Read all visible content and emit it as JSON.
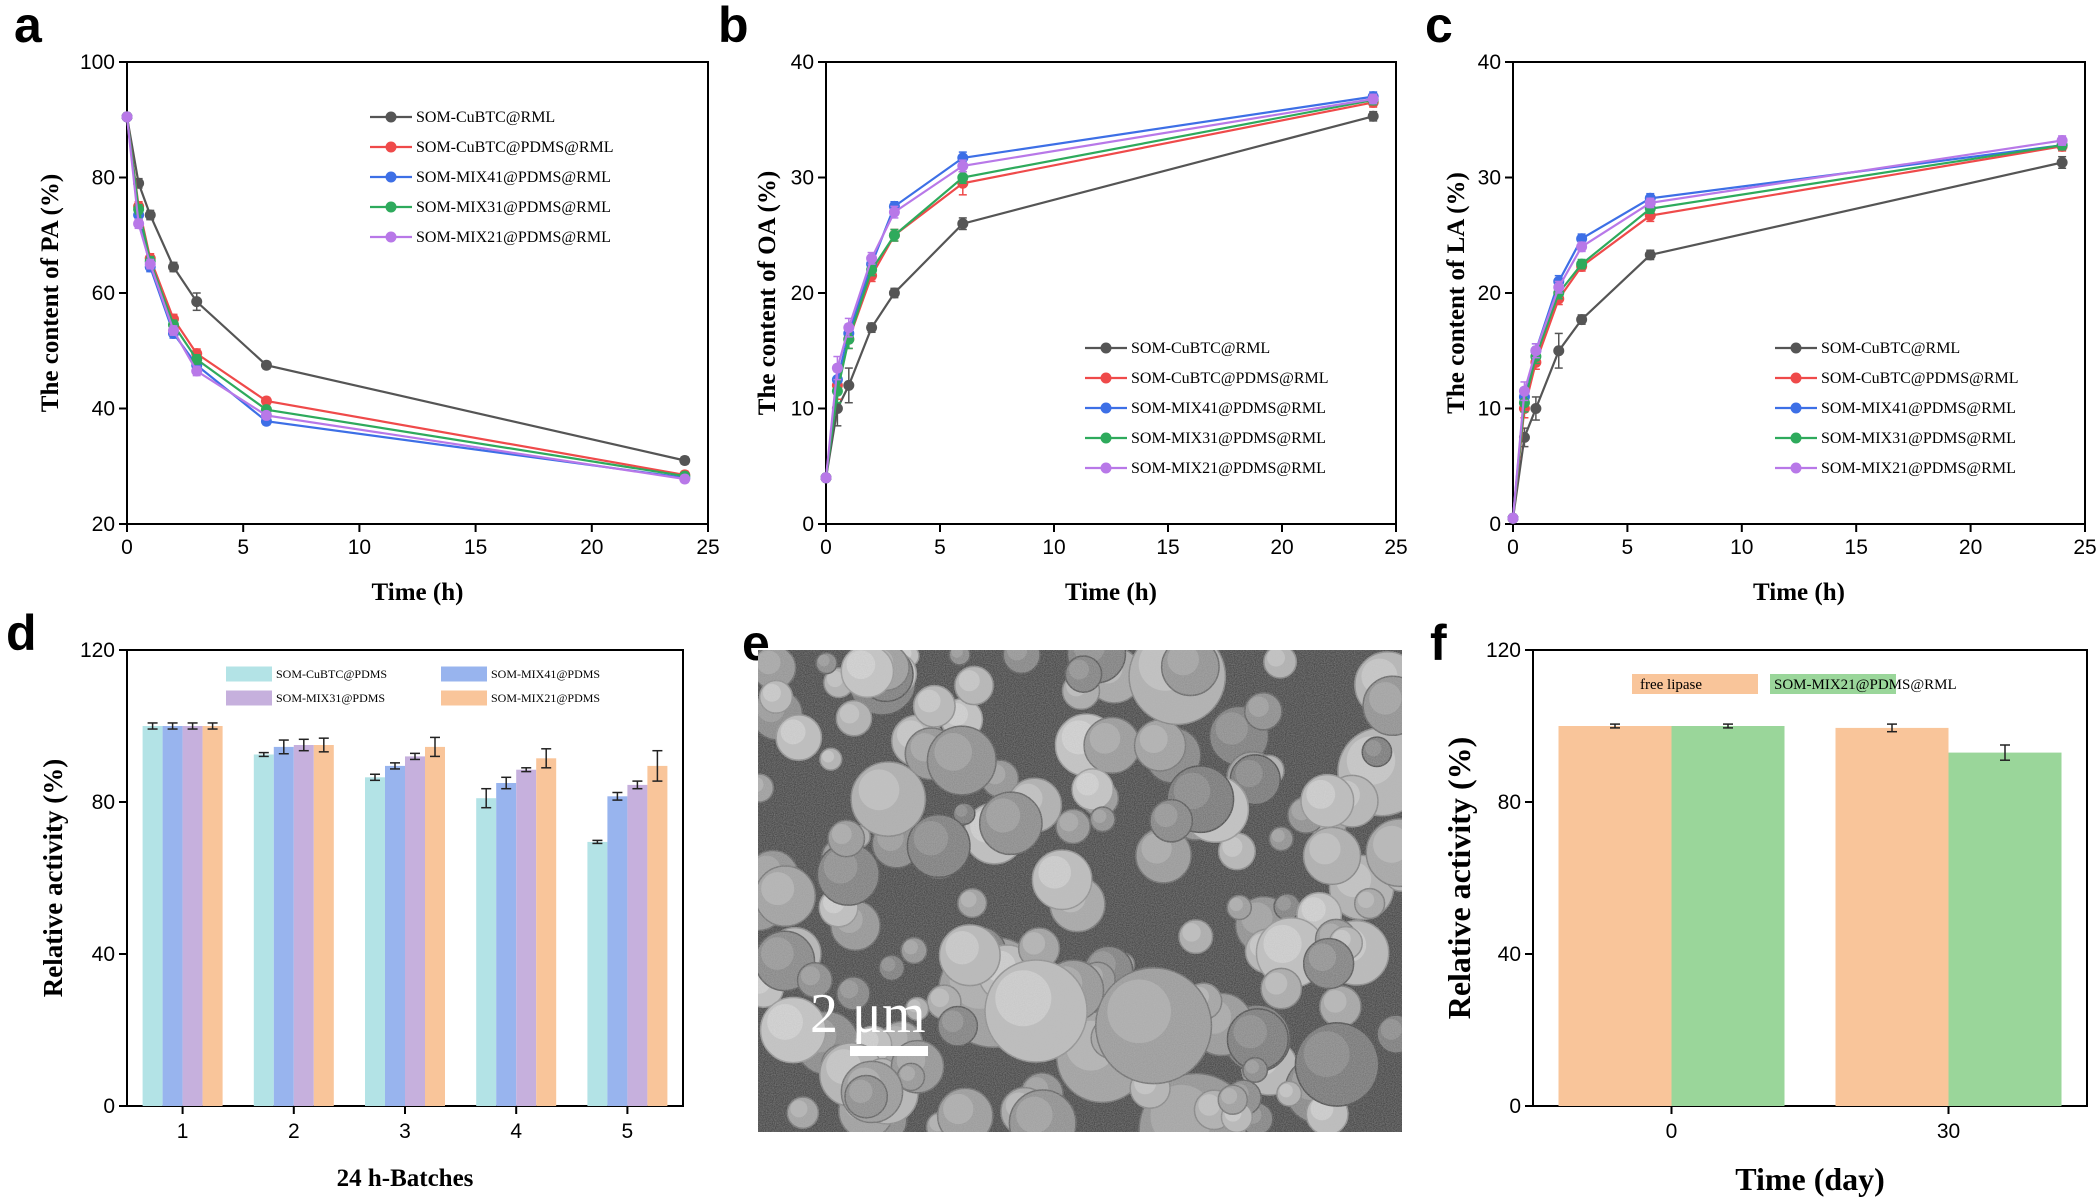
{
  "chart_data": [
    {
      "panel": "a",
      "type": "line",
      "xlabel": "Time (h)",
      "ylabel": "The content of PA (%)",
      "xlim": [
        0,
        25
      ],
      "ylim": [
        20,
        100
      ],
      "xticks": [
        0,
        5,
        10,
        15,
        20,
        25
      ],
      "yticks": [
        20,
        40,
        60,
        80,
        100
      ],
      "legend_position": "top-right",
      "x": [
        0,
        0.5,
        1,
        2,
        3,
        6,
        24
      ],
      "series": [
        {
          "name": "SOM-CuBTC@RML",
          "color": "#555555",
          "values": [
            90.5,
            79,
            73.5,
            64.5,
            58.5,
            47.5,
            31
          ],
          "errors": [
            0.5,
            0.8,
            0.8,
            0.8,
            1.5,
            0.6,
            0.6
          ]
        },
        {
          "name": "SOM-CuBTC@PDMS@RML",
          "color": "#ef4a4a",
          "values": [
            90.5,
            75,
            66,
            55.5,
            49.5,
            41.3,
            28.5
          ],
          "errors": [
            0.5,
            0.8,
            0.8,
            0.8,
            0.8,
            0.6,
            0.6
          ]
        },
        {
          "name": "SOM-MIX41@PDMS@RML",
          "color": "#3d6fe6",
          "values": [
            90.5,
            73.5,
            64.5,
            53,
            47.5,
            37.8,
            28
          ],
          "errors": [
            0.5,
            0.8,
            0.8,
            0.8,
            0.8,
            0.6,
            0.6
          ]
        },
        {
          "name": "SOM-MIX31@PDMS@RML",
          "color": "#2eaa5c",
          "values": [
            90.5,
            74.5,
            65.5,
            54.5,
            48.5,
            39.8,
            28.3
          ],
          "errors": [
            0.5,
            0.8,
            0.8,
            0.8,
            0.8,
            0.6,
            0.6
          ]
        },
        {
          "name": "SOM-MIX21@PDMS@RML",
          "color": "#b878e8",
          "values": [
            90.5,
            72,
            65,
            53.5,
            46.5,
            38.8,
            27.8
          ],
          "errors": [
            0.5,
            0.8,
            0.8,
            0.8,
            0.8,
            0.6,
            0.6
          ]
        }
      ]
    },
    {
      "panel": "b",
      "type": "line",
      "xlabel": "Time (h)",
      "ylabel": "The content of OA (%)",
      "xlim": [
        0,
        25
      ],
      "ylim": [
        0,
        40
      ],
      "xticks": [
        0,
        5,
        10,
        15,
        20,
        25
      ],
      "yticks": [
        0,
        10,
        20,
        30,
        40
      ],
      "legend_position": "bottom-right",
      "x": [
        0,
        0.5,
        1,
        2,
        3,
        6,
        24
      ],
      "series": [
        {
          "name": "SOM-CuBTC@RML",
          "color": "#555555",
          "values": [
            4,
            10,
            12,
            17,
            20,
            26,
            35.3
          ],
          "errors": [
            0.3,
            1.5,
            1.5,
            0.4,
            0.4,
            0.5,
            0.4
          ]
        },
        {
          "name": "SOM-CuBTC@PDMS@RML",
          "color": "#ef4a4a",
          "values": [
            4,
            12,
            16,
            21.5,
            25,
            29.5,
            36.5
          ],
          "errors": [
            0.3,
            1.2,
            0.8,
            0.5,
            0.5,
            1.0,
            0.4
          ]
        },
        {
          "name": "SOM-MIX41@PDMS@RML",
          "color": "#3d6fe6",
          "values": [
            4,
            12.5,
            16.5,
            22.5,
            27.5,
            31.7,
            37
          ],
          "errors": [
            0.3,
            1.0,
            0.8,
            0.5,
            0.4,
            0.5,
            0.4
          ]
        },
        {
          "name": "SOM-MIX31@PDMS@RML",
          "color": "#2eaa5c",
          "values": [
            4,
            11.5,
            16,
            22,
            25,
            30,
            36.7
          ],
          "errors": [
            0.3,
            1.0,
            0.8,
            0.5,
            0.5,
            0.5,
            0.4
          ]
        },
        {
          "name": "SOM-MIX21@PDMS@RML",
          "color": "#b878e8",
          "values": [
            4,
            13.5,
            17,
            23,
            27,
            31,
            36.8
          ],
          "errors": [
            0.3,
            1.0,
            0.8,
            0.5,
            0.5,
            0.5,
            0.4
          ]
        }
      ]
    },
    {
      "panel": "c",
      "type": "line",
      "xlabel": "Time (h)",
      "ylabel": "The content of LA (%)",
      "xlim": [
        0,
        25
      ],
      "ylim": [
        0,
        40
      ],
      "xticks": [
        0,
        5,
        10,
        15,
        20,
        25
      ],
      "yticks": [
        0,
        10,
        20,
        30,
        40
      ],
      "legend_position": "bottom-right",
      "x": [
        0,
        0.5,
        1,
        2,
        3,
        6,
        24
      ],
      "series": [
        {
          "name": "SOM-CuBTC@RML",
          "color": "#555555",
          "values": [
            0.5,
            7.5,
            10,
            15,
            17.7,
            23.3,
            31.3
          ],
          "errors": [
            0.3,
            0.8,
            1.0,
            1.5,
            0.4,
            0.4,
            0.5
          ]
        },
        {
          "name": "SOM-CuBTC@PDMS@RML",
          "color": "#ef4a4a",
          "values": [
            0.5,
            10,
            14,
            19.5,
            22.3,
            26.7,
            32.7
          ],
          "errors": [
            0.3,
            0.8,
            0.6,
            0.5,
            0.4,
            0.5,
            0.4
          ]
        },
        {
          "name": "SOM-MIX41@PDMS@RML",
          "color": "#3d6fe6",
          "values": [
            0.5,
            11,
            15,
            21,
            24.7,
            28.2,
            32.8
          ],
          "errors": [
            0.3,
            0.8,
            0.6,
            0.5,
            0.4,
            0.4,
            0.4
          ]
        },
        {
          "name": "SOM-MIX31@PDMS@RML",
          "color": "#2eaa5c",
          "values": [
            0.5,
            10.5,
            14.5,
            20,
            22.5,
            27.3,
            32.8
          ],
          "errors": [
            0.3,
            0.8,
            0.6,
            0.5,
            0.4,
            0.4,
            0.4
          ]
        },
        {
          "name": "SOM-MIX21@PDMS@RML",
          "color": "#b878e8",
          "values": [
            0.5,
            11.5,
            15,
            20.5,
            24,
            27.8,
            33.2
          ],
          "errors": [
            0.3,
            0.8,
            0.6,
            0.5,
            0.4,
            0.4,
            0.4
          ]
        }
      ]
    },
    {
      "panel": "d",
      "type": "bar",
      "xlabel": "24 h-Batches",
      "ylabel": "Relative activity (%)",
      "ylim": [
        0,
        120
      ],
      "yticks": [
        0,
        40,
        80,
        120
      ],
      "legend_position": "top",
      "categories": [
        "1",
        "2",
        "3",
        "4",
        "5"
      ],
      "series": [
        {
          "name": "SOM-CuBTC@PDMS",
          "color": "#b3e3e6",
          "values": [
            100,
            92.5,
            86.5,
            81,
            69.5
          ],
          "errors": [
            0.8,
            0.5,
            0.8,
            2.5,
            0.4
          ]
        },
        {
          "name": "SOM-MIX41@PDMS",
          "color": "#98b4ee",
          "values": [
            100,
            94.5,
            89.5,
            85,
            81.5
          ],
          "errors": [
            0.8,
            1.8,
            0.8,
            1.5,
            1.0
          ]
        },
        {
          "name": "SOM-MIX31@PDMS",
          "color": "#c6b0dd",
          "values": [
            100,
            95,
            92,
            88.5,
            84.5
          ],
          "errors": [
            0.8,
            1.5,
            0.8,
            0.5,
            1.0
          ]
        },
        {
          "name": "SOM-MIX21@PDMS",
          "color": "#f9c59a",
          "values": [
            100,
            95,
            94.5,
            91.5,
            89.5
          ],
          "errors": [
            0.8,
            1.8,
            2.5,
            2.5,
            4.0
          ]
        }
      ]
    },
    {
      "panel": "f",
      "type": "bar",
      "xlabel": "Time (day)",
      "ylabel": "Relative activity (%)",
      "ylim": [
        0,
        120
      ],
      "yticks": [
        0,
        40,
        80,
        120
      ],
      "legend_position": "top",
      "categories": [
        "0",
        "30"
      ],
      "series": [
        {
          "name": "free lipase",
          "color": "#f9c59a",
          "values": [
            100,
            99.5
          ],
          "errors": [
            0.5,
            1.0
          ]
        },
        {
          "name": "SOM-MIX21@PDMS@RML",
          "color": "#9ad69a",
          "values": [
            100,
            93
          ],
          "errors": [
            0.5,
            2.0
          ]
        }
      ]
    }
  ],
  "panels": {
    "a": "a",
    "b": "b",
    "c": "c",
    "d": "d",
    "e": "e",
    "f": "f"
  },
  "sem_image": {
    "scale_bar_label": "2 μm"
  }
}
